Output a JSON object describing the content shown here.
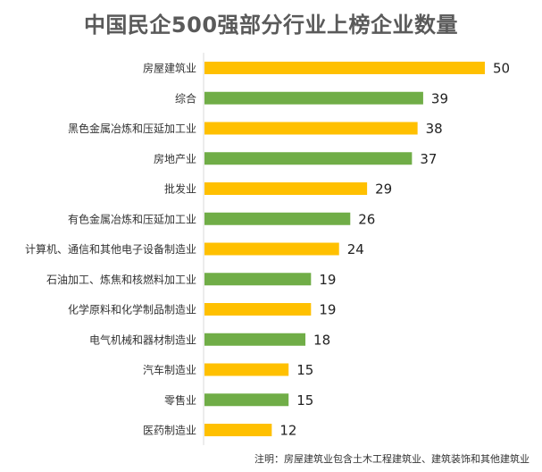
{
  "chart_data": {
    "type": "bar",
    "orientation": "horizontal",
    "title": "中国民企500强部分行业上榜企业数量",
    "categories": [
      "房屋建筑业",
      "综合",
      "黑色金属冶炼和压延加工业",
      "房地产业",
      "批发业",
      "有色金属冶炼和压延加工业",
      "计算机、通信和其他电子设备制造业",
      "石油加工、炼焦和核燃料加工业",
      "化学原料和化学制品制造业",
      "电气机械和器材制造业",
      "汽车制造业",
      "零售业",
      "医药制造业"
    ],
    "values": [
      50,
      39,
      38,
      37,
      29,
      26,
      24,
      19,
      19,
      18,
      15,
      15,
      12
    ],
    "bar_colors": [
      "#ffc000",
      "#70ad47",
      "#ffc000",
      "#70ad47",
      "#ffc000",
      "#70ad47",
      "#ffc000",
      "#70ad47",
      "#ffc000",
      "#70ad47",
      "#ffc000",
      "#70ad47",
      "#ffc000"
    ],
    "xlim": [
      0,
      50
    ],
    "grid": false,
    "data_labels": true,
    "note": "注明：房屋建筑业包含土木工程建筑业、建筑装饰和其他建筑业"
  }
}
